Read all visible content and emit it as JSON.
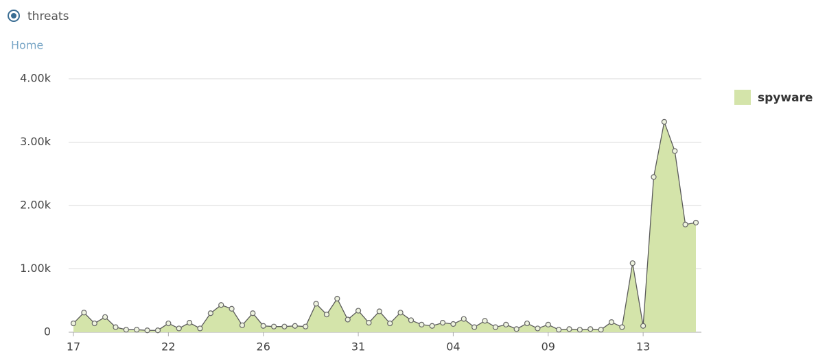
{
  "header": {
    "title": "threats",
    "breadcrumb": "Home"
  },
  "chart_data": {
    "type": "area",
    "categories": [
      "17",
      null,
      null,
      null,
      null,
      null,
      null,
      null,
      null,
      "22",
      null,
      null,
      null,
      null,
      null,
      null,
      null,
      null,
      "26",
      null,
      null,
      null,
      null,
      null,
      null,
      null,
      null,
      "31",
      null,
      null,
      null,
      null,
      null,
      null,
      null,
      null,
      "04",
      null,
      null,
      null,
      null,
      null,
      null,
      null,
      null,
      "09",
      null,
      null,
      null,
      null,
      null,
      null,
      null,
      null,
      "13",
      null,
      null,
      null,
      null,
      null
    ],
    "series": [
      {
        "name": "spyware",
        "color": "#d4e4aa",
        "values": [
          140,
          310,
          140,
          240,
          80,
          40,
          40,
          30,
          30,
          140,
          60,
          150,
          60,
          300,
          430,
          370,
          110,
          300,
          100,
          90,
          90,
          100,
          90,
          450,
          280,
          530,
          200,
          340,
          150,
          330,
          140,
          310,
          190,
          120,
          100,
          150,
          130,
          210,
          80,
          180,
          80,
          120,
          50,
          140,
          60,
          120,
          40,
          50,
          40,
          50,
          40,
          160,
          80,
          1090,
          100,
          2450,
          3320,
          2860,
          1700,
          1730
        ]
      }
    ],
    "ylim": [
      0,
      4000
    ],
    "yticks": [
      0,
      {
        "value": 1000,
        "label": "1.00k"
      },
      {
        "value": 2000,
        "label": "2.00k"
      },
      {
        "value": 3000,
        "label": "3.00k"
      },
      {
        "value": 4000,
        "label": "4.00k"
      }
    ],
    "grid": true,
    "legend": "right"
  }
}
